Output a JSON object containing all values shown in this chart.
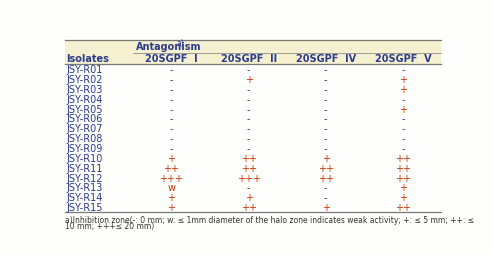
{
  "col_header_main": "Antagonism",
  "col_header_sup": "a)",
  "col_header_sub": [
    "20SGPF  I",
    "20SGPF  II",
    "20SGPF  IV",
    "20SGPF  V"
  ],
  "row_header": "Isolates",
  "rows": [
    [
      "JSY-R01",
      "-",
      "-",
      "-",
      "-"
    ],
    [
      "JSY-R02",
      "-",
      "+",
      "-",
      "+"
    ],
    [
      "JSY-R03",
      "-",
      "-",
      "-",
      "+"
    ],
    [
      "JSY-R04",
      "-",
      "-",
      "-",
      "-"
    ],
    [
      "JSY-R05",
      "-",
      "-",
      "-",
      "+"
    ],
    [
      "JSY-R06",
      "-",
      "-",
      "-",
      "-"
    ],
    [
      "JSY-R07",
      "-",
      "-",
      "-",
      "-"
    ],
    [
      "JSY-R08",
      "-",
      "-",
      "-",
      "-"
    ],
    [
      "JSY-R09",
      "-",
      "-",
      "-",
      "-"
    ],
    [
      "JSY-R10",
      "+",
      "++",
      "+",
      "++"
    ],
    [
      "JSY-R11",
      "++",
      "++",
      "++",
      "++"
    ],
    [
      "JSY-R12",
      "+++",
      "+++",
      "++",
      "++"
    ],
    [
      "JSY-R13",
      "w",
      "-",
      "-",
      "+"
    ],
    [
      "JSY-R14",
      "+",
      "+",
      "-",
      "+"
    ],
    [
      "JSY-R15",
      "+",
      "++",
      "+",
      "++"
    ]
  ],
  "footnote_line1": "a)Inhibition zone(-: 0 mm; w: ≤ 1mm diameter of the halo zone indicates weak activity; +: ≤ 5 mm; ++: ≤",
  "footnote_line2": "10 mm; +++≤ 20 mm)",
  "bg_header": "#F5F0D0",
  "bg_body": "#FEFEFC",
  "text_color": "#2B3A8C",
  "plus_color": "#CC3300",
  "minus_color": "#2B3A8C",
  "w_color": "#CC3300",
  "line_color": "#777777",
  "font_size": 7.0,
  "footnote_size": 5.5
}
